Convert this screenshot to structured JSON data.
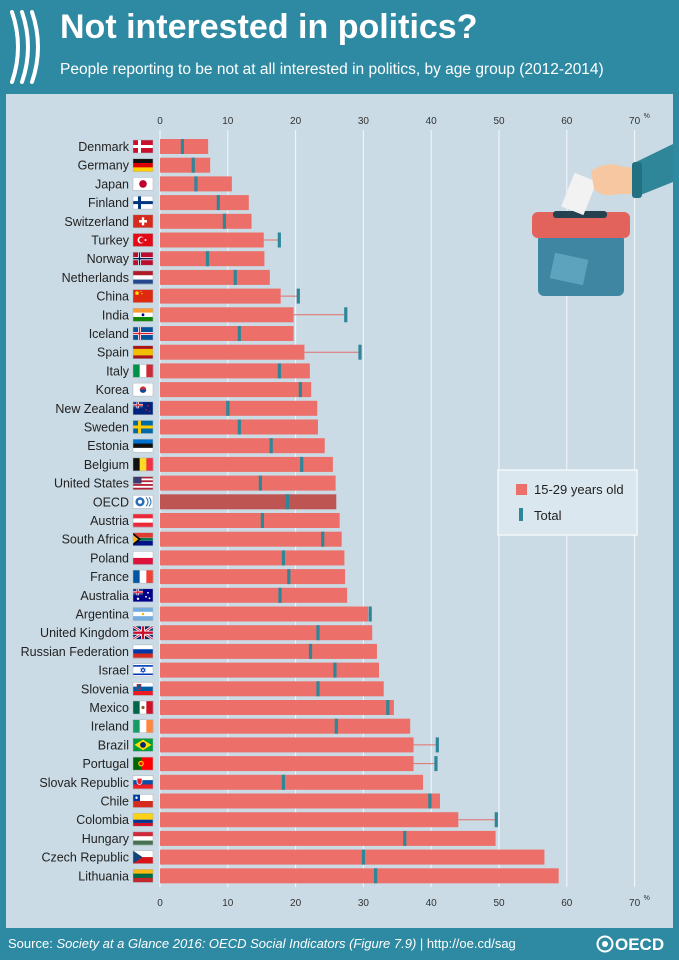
{
  "header": {
    "title": "Not interested in politics?",
    "subtitle": "People reporting to be not at all interested in politics, by age group (2012-2014)"
  },
  "footer": {
    "source_label": "Source:",
    "source_title": "Society at a Glance 2016: OECD Social Indicators (Figure 7.9)",
    "source_link": "| http://oe.cd/sag",
    "logo_text": "OECD"
  },
  "colors": {
    "header_bg": "#2d8aa2",
    "panel_bg": "#cbdbe5",
    "bar": "#ec7069",
    "bar_oecd": "#bf5552",
    "total_marker": "#2e8698",
    "connector": "#e0706a"
  },
  "chart_data": {
    "type": "bar",
    "orientation": "horizontal",
    "xlim": [
      0,
      70
    ],
    "x_ticks": [
      0,
      10,
      20,
      30,
      40,
      50,
      60,
      70
    ],
    "x_unit": "%",
    "legend_position": "right",
    "series": [
      {
        "name": "15-29 years old",
        "kind": "bar"
      },
      {
        "name": "Total",
        "kind": "marker"
      }
    ],
    "highlight_category": "OECD",
    "categories": [
      "Denmark",
      "Germany",
      "Japan",
      "Finland",
      "Switzerland",
      "Turkey",
      "Norway",
      "Netherlands",
      "China",
      "India",
      "Iceland",
      "Spain",
      "Italy",
      "Korea",
      "New Zealand",
      "Sweden",
      "Estonia",
      "Belgium",
      "United States",
      "OECD",
      "Austria",
      "South Africa",
      "Poland",
      "France",
      "Australia",
      "Argentina",
      "United Kingdom",
      "Russian Federation",
      "Israel",
      "Slovenia",
      "Mexico",
      "Ireland",
      "Brazil",
      "Portugal",
      "Slovak Republic",
      "Chile",
      "Colombia",
      "Hungary",
      "Czech Republic",
      "Lithuania"
    ],
    "youth": [
      7.1,
      7.4,
      10.6,
      13.1,
      13.5,
      15.3,
      15.4,
      16.2,
      17.8,
      19.7,
      19.7,
      21.3,
      22.1,
      22.3,
      23.2,
      23.3,
      24.3,
      25.5,
      25.9,
      26.0,
      26.5,
      26.8,
      27.2,
      27.3,
      27.6,
      30.7,
      31.3,
      32.0,
      32.3,
      33.0,
      34.5,
      36.9,
      37.4,
      37.4,
      38.8,
      41.3,
      44.0,
      49.5,
      56.7,
      58.8
    ],
    "total": [
      3.3,
      4.9,
      5.3,
      8.6,
      9.5,
      17.6,
      7.0,
      11.1,
      20.4,
      27.4,
      11.7,
      29.5,
      17.6,
      20.7,
      10.0,
      11.7,
      16.4,
      20.9,
      14.8,
      18.8,
      15.1,
      24.0,
      18.2,
      19.0,
      17.7,
      31.0,
      23.3,
      22.2,
      25.8,
      23.3,
      33.6,
      26.0,
      40.9,
      40.7,
      18.2,
      39.8,
      49.6,
      36.1,
      30.0,
      31.8
    ]
  }
}
